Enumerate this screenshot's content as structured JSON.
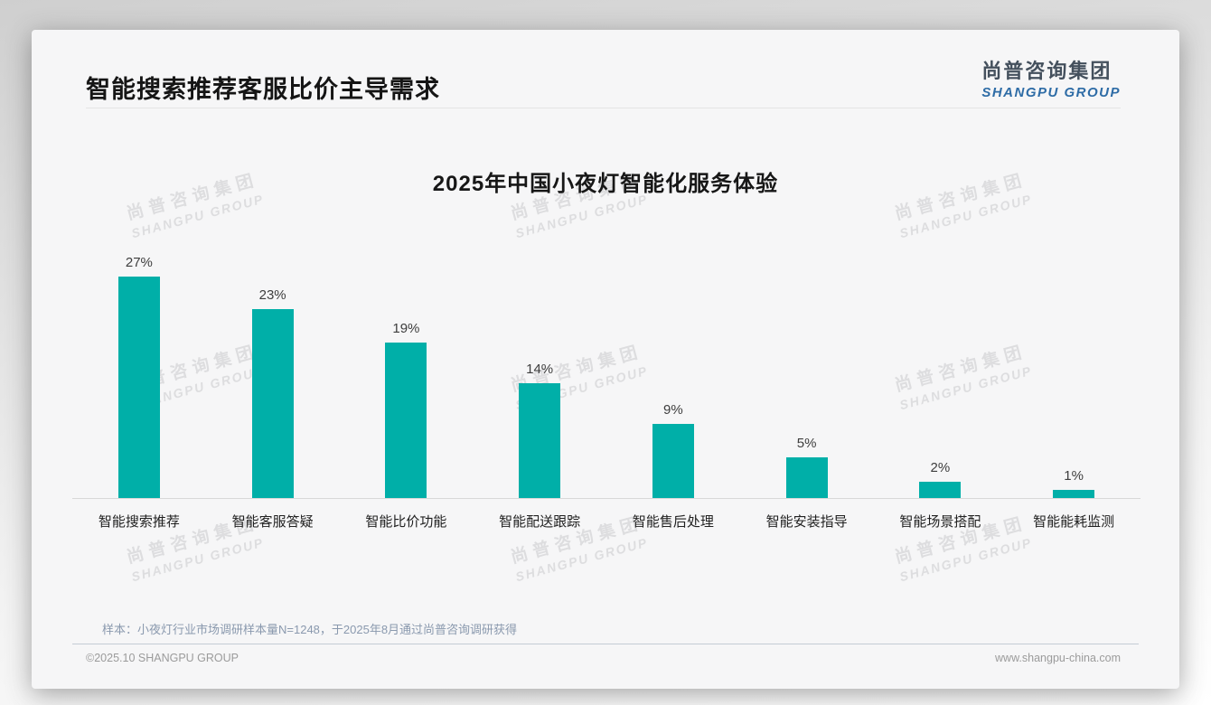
{
  "header": {
    "title": "智能搜索推荐客服比价主导需求"
  },
  "logo": {
    "cn": "尚普咨询集团",
    "en": "SHANGPU GROUP"
  },
  "watermark": {
    "cn": "尚普咨询集团",
    "en": "SHANGPU GROUP"
  },
  "chart_data": {
    "type": "bar",
    "title": "2025年中国小夜灯智能化服务体验",
    "categories": [
      "智能搜索推荐",
      "智能客服答疑",
      "智能比价功能",
      "智能配送跟踪",
      "智能售后处理",
      "智能安装指导",
      "智能场景搭配",
      "智能能耗监测"
    ],
    "values": [
      27,
      23,
      19,
      14,
      9,
      5,
      2,
      1
    ],
    "value_labels": [
      "27%",
      "23%",
      "19%",
      "14%",
      "9%",
      "5%",
      "2%",
      "1%"
    ],
    "value_suffix": "%",
    "xlabel": "",
    "ylabel": "",
    "ylim": [
      0,
      30
    ],
    "grid": false,
    "legend": "none",
    "bar_color": "#00afa8"
  },
  "colors": {
    "bar": "#00afa8",
    "logo_blue": "#2e6ca6",
    "logo_dark": "#44505d",
    "footnote": "#8a99ae",
    "card_bg": "#f6f6f7"
  },
  "footnote": "样本：小夜灯行业市场调研样本量N=1248，于2025年8月通过尚普咨询调研获得",
  "footer": {
    "left": "©2025.10 SHANGPU GROUP",
    "right": "www.shangpu-china.com"
  }
}
